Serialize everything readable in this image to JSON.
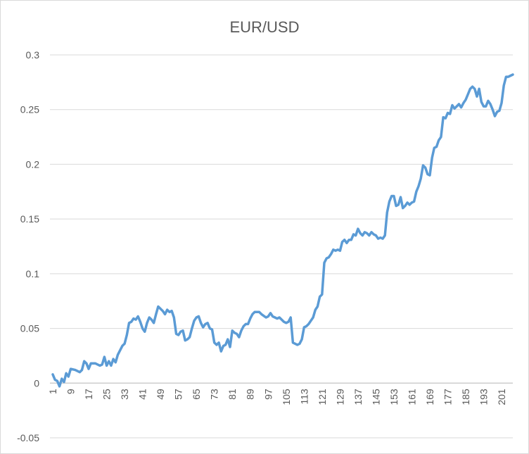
{
  "chart_data": {
    "type": "line",
    "title": "EUR/USD",
    "xlabel": "",
    "ylabel": "",
    "ylim": [
      -0.05,
      0.3
    ],
    "yticks": [
      -0.05,
      0,
      0.05,
      0.1,
      0.15,
      0.2,
      0.25,
      0.3
    ],
    "ytick_labels": [
      "-0.05",
      "0",
      "0.05",
      "0.1",
      "0.15",
      "0.2",
      "0.25",
      "0.3"
    ],
    "xlim": [
      1,
      204
    ],
    "xticks": [
      1,
      9,
      17,
      25,
      33,
      41,
      49,
      57,
      65,
      73,
      81,
      89,
      97,
      105,
      113,
      121,
      129,
      137,
      145,
      153,
      161,
      169,
      177,
      185,
      193,
      201
    ],
    "xtick_labels": [
      "1",
      "9",
      "17",
      "25",
      "33",
      "41",
      "49",
      "57",
      "65",
      "73",
      "81",
      "89",
      "97",
      "105",
      "113",
      "121",
      "129",
      "137",
      "145",
      "153",
      "161",
      "169",
      "177",
      "185",
      "193",
      "201"
    ],
    "grid": true,
    "legend": "none",
    "series": [
      {
        "color": "#5b9bd5",
        "points": [
          [
            1,
            0.008
          ],
          [
            2,
            0.003
          ],
          [
            3,
            0.002
          ],
          [
            4,
            -0.003
          ],
          [
            5,
            0.004
          ],
          [
            6,
            0.001
          ],
          [
            7,
            0.009
          ],
          [
            8,
            0.006
          ],
          [
            9,
            0.013
          ],
          [
            11,
            0.012
          ],
          [
            13,
            0.01
          ],
          [
            14,
            0.012
          ],
          [
            15,
            0.02
          ],
          [
            16,
            0.018
          ],
          [
            17,
            0.013
          ],
          [
            18,
            0.018
          ],
          [
            20,
            0.018
          ],
          [
            22,
            0.016
          ],
          [
            23,
            0.017
          ],
          [
            24,
            0.024
          ],
          [
            25,
            0.016
          ],
          [
            26,
            0.02
          ],
          [
            27,
            0.016
          ],
          [
            28,
            0.022
          ],
          [
            29,
            0.019
          ],
          [
            30,
            0.026
          ],
          [
            31,
            0.03
          ],
          [
            32,
            0.034
          ],
          [
            33,
            0.036
          ],
          [
            34,
            0.044
          ],
          [
            35,
            0.055
          ],
          [
            36,
            0.056
          ],
          [
            37,
            0.059
          ],
          [
            38,
            0.058
          ],
          [
            39,
            0.061
          ],
          [
            40,
            0.056
          ],
          [
            41,
            0.05
          ],
          [
            42,
            0.047
          ],
          [
            43,
            0.055
          ],
          [
            44,
            0.06
          ],
          [
            45,
            0.058
          ],
          [
            46,
            0.055
          ],
          [
            47,
            0.063
          ],
          [
            48,
            0.07
          ],
          [
            49,
            0.068
          ],
          [
            50,
            0.066
          ],
          [
            51,
            0.063
          ],
          [
            52,
            0.067
          ],
          [
            53,
            0.065
          ],
          [
            54,
            0.066
          ],
          [
            55,
            0.06
          ],
          [
            56,
            0.045
          ],
          [
            57,
            0.044
          ],
          [
            58,
            0.047
          ],
          [
            59,
            0.048
          ],
          [
            60,
            0.039
          ],
          [
            61,
            0.04
          ],
          [
            62,
            0.042
          ],
          [
            63,
            0.05
          ],
          [
            64,
            0.057
          ],
          [
            65,
            0.06
          ],
          [
            66,
            0.061
          ],
          [
            67,
            0.055
          ],
          [
            68,
            0.051
          ],
          [
            69,
            0.054
          ],
          [
            70,
            0.055
          ],
          [
            71,
            0.05
          ],
          [
            72,
            0.049
          ],
          [
            73,
            0.037
          ],
          [
            74,
            0.035
          ],
          [
            75,
            0.037
          ],
          [
            76,
            0.029
          ],
          [
            77,
            0.034
          ],
          [
            78,
            0.035
          ],
          [
            79,
            0.04
          ],
          [
            80,
            0.033
          ],
          [
            81,
            0.048
          ],
          [
            82,
            0.046
          ],
          [
            83,
            0.045
          ],
          [
            84,
            0.042
          ],
          [
            85,
            0.048
          ],
          [
            86,
            0.052
          ],
          [
            87,
            0.054
          ],
          [
            88,
            0.054
          ],
          [
            89,
            0.059
          ],
          [
            90,
            0.063
          ],
          [
            91,
            0.065
          ],
          [
            93,
            0.065
          ],
          [
            94,
            0.063
          ],
          [
            96,
            0.06
          ],
          [
            97,
            0.061
          ],
          [
            98,
            0.064
          ],
          [
            99,
            0.061
          ],
          [
            100,
            0.06
          ],
          [
            101,
            0.059
          ],
          [
            102,
            0.06
          ],
          [
            103,
            0.058
          ],
          [
            104,
            0.056
          ],
          [
            105,
            0.055
          ],
          [
            106,
            0.056
          ],
          [
            107,
            0.06
          ],
          [
            108,
            0.037
          ],
          [
            109,
            0.036
          ],
          [
            110,
            0.035
          ],
          [
            111,
            0.036
          ],
          [
            112,
            0.04
          ],
          [
            113,
            0.051
          ],
          [
            114,
            0.052
          ],
          [
            115,
            0.054
          ],
          [
            116,
            0.057
          ],
          [
            117,
            0.06
          ],
          [
            118,
            0.067
          ],
          [
            119,
            0.07
          ],
          [
            120,
            0.079
          ],
          [
            121,
            0.081
          ],
          [
            122,
            0.11
          ],
          [
            123,
            0.114
          ],
          [
            124,
            0.115
          ],
          [
            125,
            0.118
          ],
          [
            126,
            0.122
          ],
          [
            127,
            0.121
          ],
          [
            128,
            0.122
          ],
          [
            129,
            0.121
          ],
          [
            130,
            0.129
          ],
          [
            131,
            0.131
          ],
          [
            132,
            0.128
          ],
          [
            133,
            0.131
          ],
          [
            134,
            0.131
          ],
          [
            135,
            0.136
          ],
          [
            136,
            0.135
          ],
          [
            137,
            0.141
          ],
          [
            138,
            0.137
          ],
          [
            139,
            0.135
          ],
          [
            140,
            0.138
          ],
          [
            141,
            0.137
          ],
          [
            142,
            0.135
          ],
          [
            143,
            0.138
          ],
          [
            144,
            0.136
          ],
          [
            145,
            0.135
          ],
          [
            146,
            0.132
          ],
          [
            147,
            0.133
          ],
          [
            148,
            0.132
          ],
          [
            149,
            0.135
          ],
          [
            150,
            0.156
          ],
          [
            151,
            0.166
          ],
          [
            152,
            0.171
          ],
          [
            153,
            0.171
          ],
          [
            154,
            0.162
          ],
          [
            155,
            0.163
          ],
          [
            156,
            0.17
          ],
          [
            157,
            0.16
          ],
          [
            158,
            0.162
          ],
          [
            159,
            0.165
          ],
          [
            160,
            0.163
          ],
          [
            161,
            0.165
          ],
          [
            162,
            0.166
          ],
          [
            163,
            0.175
          ],
          [
            164,
            0.18
          ],
          [
            165,
            0.187
          ],
          [
            166,
            0.199
          ],
          [
            167,
            0.197
          ],
          [
            168,
            0.191
          ],
          [
            169,
            0.19
          ],
          [
            170,
            0.206
          ],
          [
            171,
            0.215
          ],
          [
            172,
            0.216
          ],
          [
            173,
            0.222
          ],
          [
            174,
            0.225
          ],
          [
            175,
            0.243
          ],
          [
            176,
            0.242
          ],
          [
            177,
            0.247
          ],
          [
            178,
            0.246
          ],
          [
            179,
            0.254
          ],
          [
            180,
            0.251
          ],
          [
            181,
            0.253
          ],
          [
            182,
            0.255
          ],
          [
            183,
            0.252
          ],
          [
            184,
            0.256
          ],
          [
            185,
            0.259
          ],
          [
            186,
            0.264
          ],
          [
            187,
            0.269
          ],
          [
            188,
            0.271
          ],
          [
            189,
            0.269
          ],
          [
            190,
            0.262
          ],
          [
            191,
            0.269
          ],
          [
            192,
            0.257
          ],
          [
            193,
            0.253
          ],
          [
            194,
            0.253
          ],
          [
            195,
            0.258
          ],
          [
            196,
            0.255
          ],
          [
            197,
            0.25
          ],
          [
            198,
            0.244
          ],
          [
            199,
            0.248
          ],
          [
            200,
            0.249
          ],
          [
            201,
            0.256
          ],
          [
            202,
            0.272
          ],
          [
            203,
            0.28
          ],
          [
            204,
            0.28
          ],
          [
            205,
            0.281
          ],
          [
            206,
            0.282
          ]
        ]
      }
    ]
  }
}
